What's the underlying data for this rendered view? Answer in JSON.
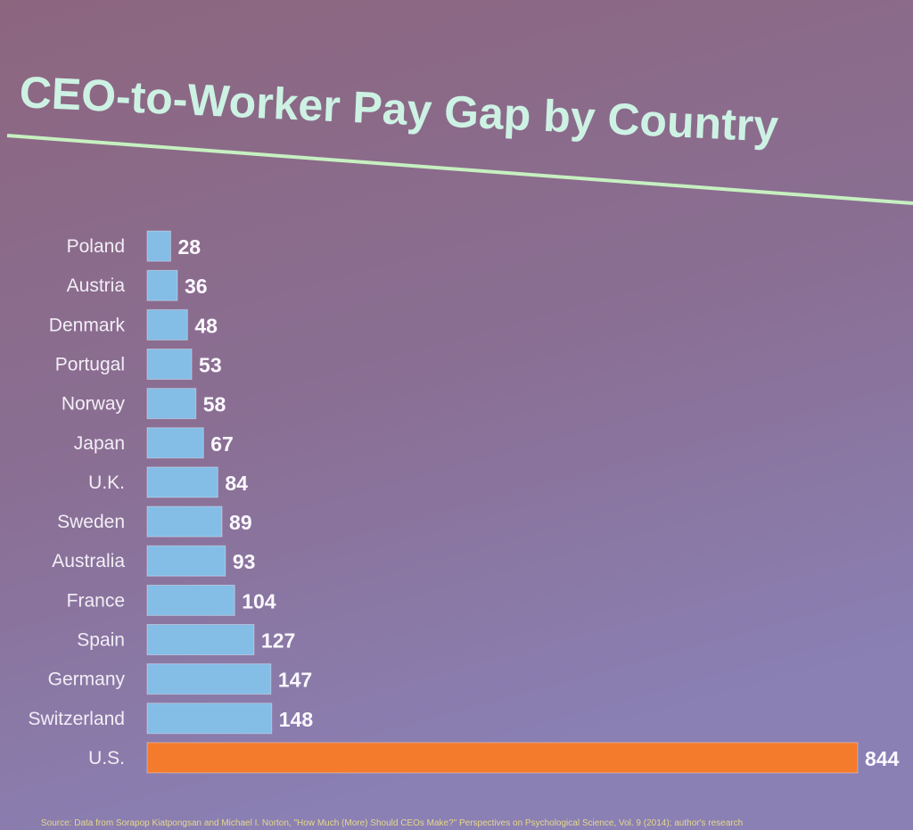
{
  "chart_data": {
    "type": "bar",
    "orientation": "horizontal",
    "title": "CEO-to-Worker Pay Gap by Country",
    "categories": [
      "Poland",
      "Austria",
      "Denmark",
      "Portugal",
      "Norway",
      "Japan",
      "U.K.",
      "Sweden",
      "Australia",
      "France",
      "Spain",
      "Germany",
      "Switzerland",
      "U.S."
    ],
    "values": [
      28,
      36,
      48,
      53,
      58,
      67,
      84,
      89,
      93,
      104,
      127,
      147,
      148,
      844
    ],
    "colors": [
      "#84bde6",
      "#84bde6",
      "#84bde6",
      "#84bde6",
      "#84bde6",
      "#84bde6",
      "#84bde6",
      "#84bde6",
      "#84bde6",
      "#84bde6",
      "#84bde6",
      "#84bde6",
      "#84bde6",
      "#f47b2c"
    ],
    "source": "Source: Data from Sorapop Kiatpongsan and Michael I. Norton, \"How Much (More) Should CEOs Make?\" Perspectives on Psychological Science, Vol. 9 (2014); author's research"
  }
}
